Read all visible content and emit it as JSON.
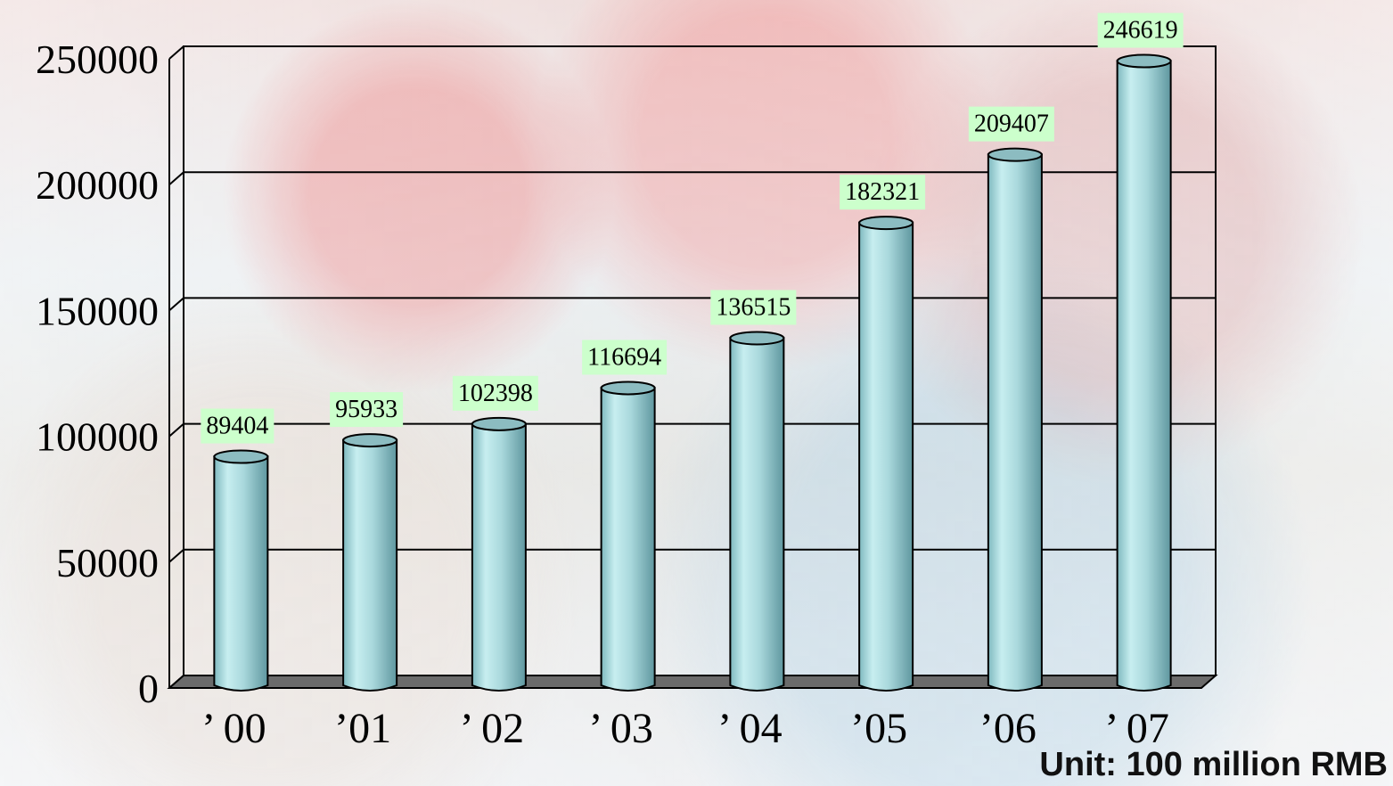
{
  "chart_data": {
    "type": "bar",
    "categories": [
      "’ 00",
      "’01",
      "’ 02",
      "’ 03",
      "’ 04",
      "’05",
      "’06",
      "’ 07"
    ],
    "values": [
      89404,
      95933,
      102398,
      116694,
      136515,
      182321,
      209407,
      246619
    ],
    "data_labels": [
      "89404",
      "95933",
      "102398",
      "116694",
      "136515",
      "182321",
      "209407",
      "246619"
    ],
    "y_ticks": [
      0,
      50000,
      100000,
      150000,
      200000,
      250000
    ],
    "ylim": [
      0,
      250000
    ],
    "grid": true,
    "unit_label": "Unit: 100 million RMB",
    "colors": {
      "bar_fill": "#a9d8dc",
      "bar_shade": "#6fa8b0",
      "data_label_bg": "#ccffcc",
      "grid": "#000000",
      "floor": "#6b6b6b"
    }
  }
}
